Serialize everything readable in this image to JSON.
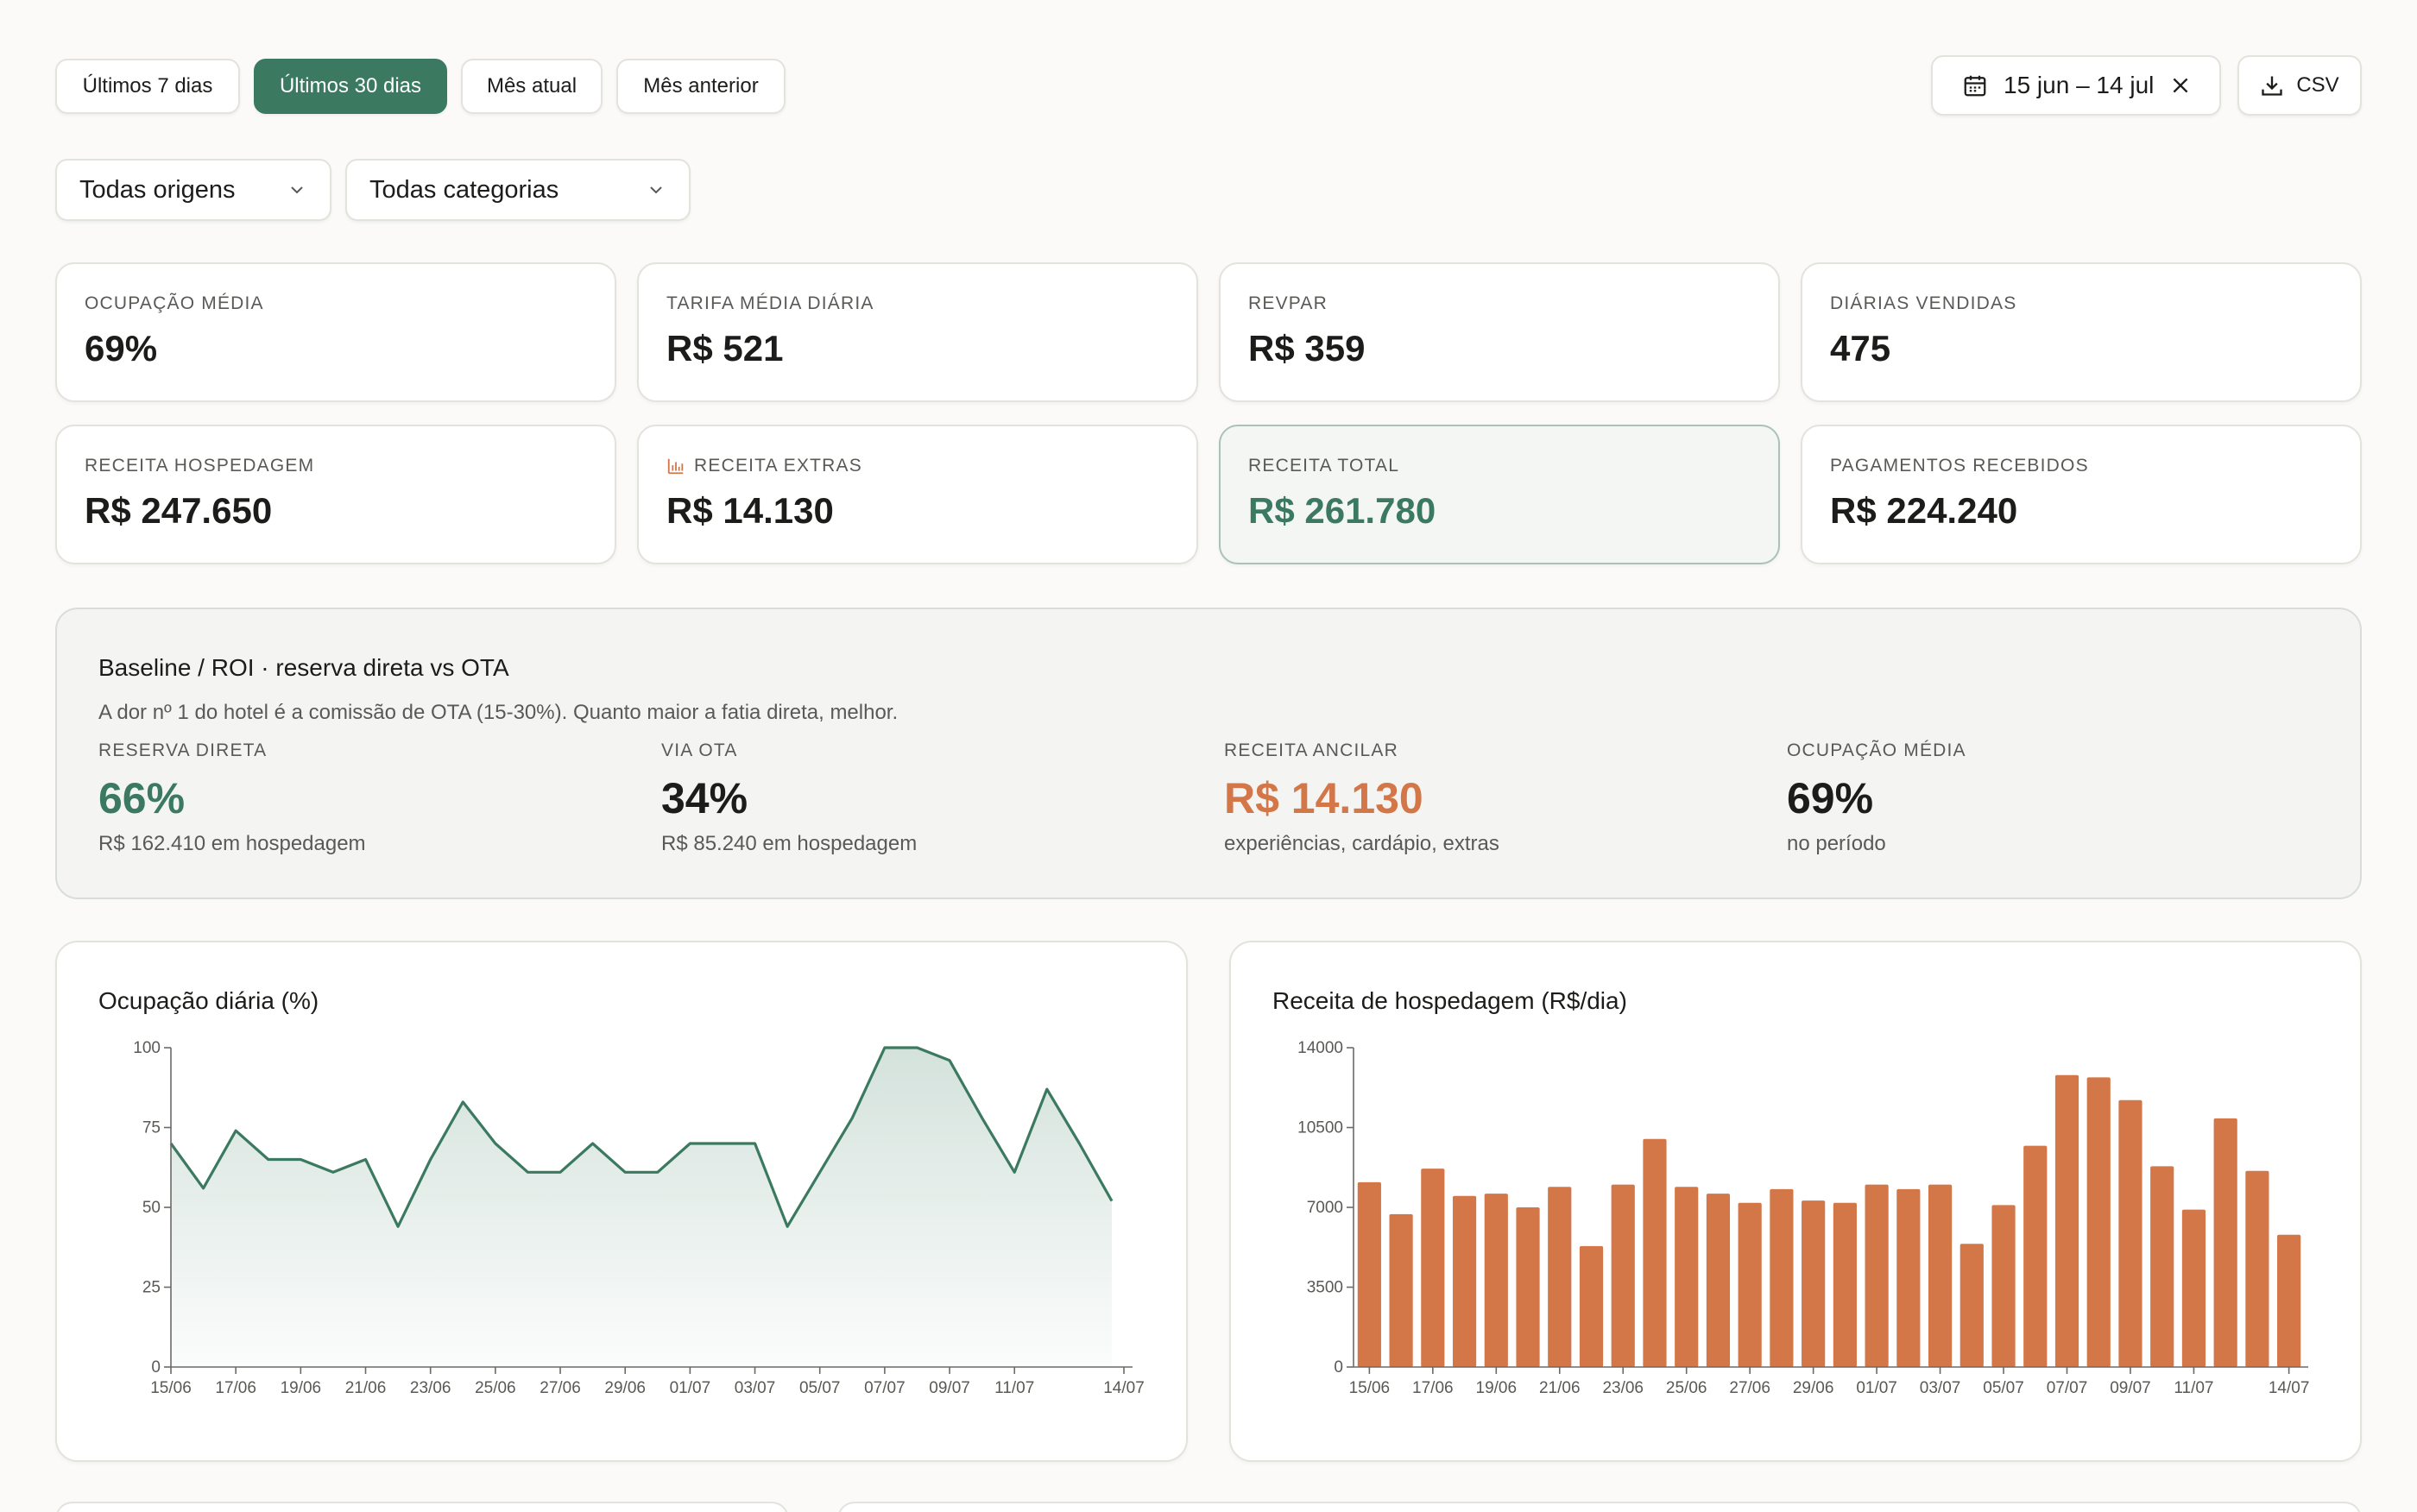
{
  "filters": {
    "periods": [
      "Últimos 7 dias",
      "Últimos 30 dias",
      "Mês atual",
      "Mês anterior"
    ],
    "active_period": "Últimos 30 dias",
    "date_range": "15 jun – 14 jul",
    "csv_label": "CSV",
    "origin_select": "Todas origens",
    "category_select": "Todas categorias"
  },
  "kpis": [
    {
      "label": "OCUPAÇÃO MÉDIA",
      "value": "69%"
    },
    {
      "label": "TARIFA MÉDIA DIÁRIA",
      "value": "R$ 521"
    },
    {
      "label": "REVPAR",
      "value": "R$ 359"
    },
    {
      "label": "DIÁRIAS VENDIDAS",
      "value": "475"
    },
    {
      "label": "RECEITA HOSPEDAGEM",
      "value": "R$ 247.650"
    },
    {
      "label": "RECEITA EXTRAS",
      "value": "R$ 14.130"
    },
    {
      "label": "RECEITA TOTAL",
      "value": "R$ 261.780"
    },
    {
      "label": "PAGAMENTOS RECEBIDOS",
      "value": "R$ 224.240"
    }
  ],
  "roi": {
    "title": "Baseline / ROI · reserva direta vs OTA",
    "description": "A dor nº 1 do hotel é a comissão de OTA (15-30%). Quanto maior a fatia direta, melhor.",
    "columns": [
      {
        "label": "RESERVA DIRETA",
        "value": "66%",
        "note": "R$ 162.410 em hospedagem",
        "color": "#3b7a60"
      },
      {
        "label": "VIA OTA",
        "value": "34%",
        "note": "R$ 85.240 em hospedagem",
        "color": "#1c1c1a"
      },
      {
        "label": "RECEITA ANCILAR",
        "value": "R$ 14.130",
        "note": "experiências, cardápio, extras",
        "color": "#d37749"
      },
      {
        "label": "OCUPAÇÃO MÉDIA",
        "value": "69%",
        "note": "no período",
        "color": "#1c1c1a"
      }
    ]
  },
  "colors": {
    "accent": "#3b7a60",
    "bar": "#d37749"
  },
  "chart_data": [
    {
      "type": "area",
      "title": "Ocupação diária (%)",
      "x": [
        "15/06",
        "16/06",
        "17/06",
        "18/06",
        "19/06",
        "20/06",
        "21/06",
        "22/06",
        "23/06",
        "24/06",
        "25/06",
        "26/06",
        "27/06",
        "28/06",
        "29/06",
        "30/06",
        "01/07",
        "02/07",
        "03/07",
        "04/07",
        "05/07",
        "06/07",
        "07/07",
        "08/07",
        "09/07",
        "10/07",
        "11/07",
        "12/07",
        "13/07",
        "14/07"
      ],
      "xticks": [
        "15/06",
        "17/06",
        "19/06",
        "21/06",
        "23/06",
        "25/06",
        "27/06",
        "29/06",
        "01/07",
        "03/07",
        "05/07",
        "07/07",
        "09/07",
        "11/07",
        "14/07"
      ],
      "values": [
        70,
        56,
        74,
        65,
        65,
        61,
        65,
        44,
        65,
        83,
        70,
        61,
        61,
        70,
        61,
        61,
        70,
        70,
        70,
        44,
        61,
        78,
        100,
        100,
        96,
        78,
        61,
        87,
        70,
        52
      ],
      "ylim": [
        0,
        100
      ],
      "yticks": [
        0,
        25,
        50,
        75,
        100
      ],
      "xlabel": "",
      "ylabel": ""
    },
    {
      "type": "bar",
      "title": "Receita de hospedagem (R$/dia)",
      "x": [
        "15/06",
        "16/06",
        "17/06",
        "18/06",
        "19/06",
        "20/06",
        "21/06",
        "22/06",
        "23/06",
        "24/06",
        "25/06",
        "26/06",
        "27/06",
        "28/06",
        "29/06",
        "30/06",
        "01/07",
        "02/07",
        "03/07",
        "04/07",
        "05/07",
        "06/07",
        "07/07",
        "08/07",
        "09/07",
        "10/07",
        "11/07",
        "12/07",
        "13/07",
        "14/07"
      ],
      "xticks": [
        "15/06",
        "17/06",
        "19/06",
        "21/06",
        "23/06",
        "25/06",
        "27/06",
        "29/06",
        "01/07",
        "03/07",
        "05/07",
        "07/07",
        "09/07",
        "11/07",
        "14/07"
      ],
      "values": [
        8100,
        6700,
        8700,
        7500,
        7600,
        7000,
        7900,
        5300,
        8000,
        10000,
        7900,
        7600,
        7200,
        7800,
        7300,
        7200,
        8000,
        7800,
        8000,
        5400,
        7100,
        9700,
        12800,
        12700,
        11700,
        8800,
        6900,
        10900,
        8600,
        5800
      ],
      "ylim": [
        0,
        14000
      ],
      "yticks": [
        0,
        3500,
        7000,
        10500,
        14000
      ],
      "xlabel": "",
      "ylabel": ""
    }
  ]
}
